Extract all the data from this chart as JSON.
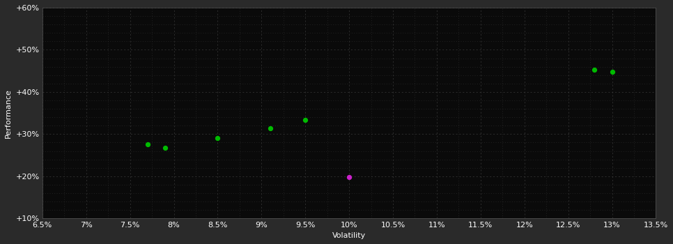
{
  "background_color": "#2a2a2a",
  "plot_bg_color": "#0a0a0a",
  "grid_color": "#383838",
  "text_color": "#ffffff",
  "xlabel": "Volatility",
  "ylabel": "Performance",
  "xlim": [
    0.065,
    0.135
  ],
  "ylim": [
    0.1,
    0.6
  ],
  "xticks": [
    0.065,
    0.07,
    0.075,
    0.08,
    0.085,
    0.09,
    0.095,
    0.1,
    0.105,
    0.11,
    0.115,
    0.12,
    0.125,
    0.13,
    0.135
  ],
  "yticks": [
    0.1,
    0.2,
    0.3,
    0.4,
    0.5,
    0.6
  ],
  "xtick_labels": [
    "6.5%",
    "7%",
    "7.5%",
    "8%",
    "8.5%",
    "9%",
    "9.5%",
    "10%",
    "10.5%",
    "11%",
    "11.5%",
    "12%",
    "12.5%",
    "13%",
    "13.5%"
  ],
  "ytick_labels": [
    "+10%",
    "+20%",
    "+30%",
    "+40%",
    "+50%",
    "+60%"
  ],
  "green_points": [
    [
      0.077,
      0.275
    ],
    [
      0.079,
      0.268
    ],
    [
      0.085,
      0.291
    ],
    [
      0.091,
      0.314
    ],
    [
      0.095,
      0.333
    ],
    [
      0.128,
      0.452
    ],
    [
      0.13,
      0.447
    ]
  ],
  "magenta_points": [
    [
      0.1,
      0.198
    ]
  ],
  "green_color": "#00bb00",
  "magenta_color": "#cc22cc",
  "marker_size": 18,
  "label_fontsize": 8,
  "tick_fontsize": 8
}
